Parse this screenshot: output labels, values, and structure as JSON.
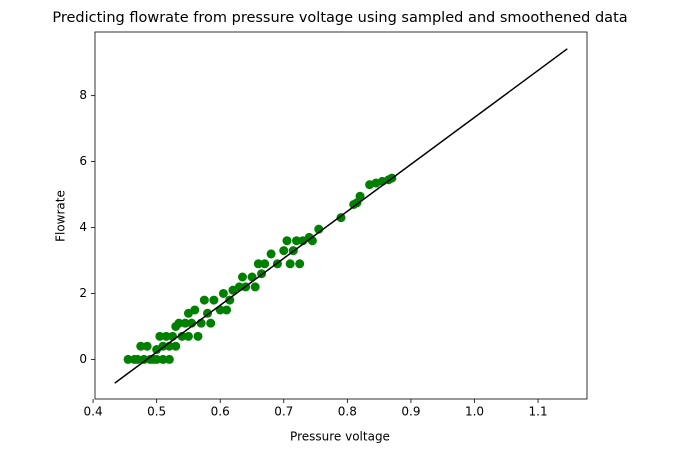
{
  "chart_data": {
    "type": "scatter",
    "title": "Predicting flowrate from pressure voltage using sampled and smoothened data",
    "x_label": "Pressure voltage",
    "y_label": "Flowrate",
    "xlim": [
      0.403,
      1.177
    ],
    "ylim": [
      -1.2,
      9.93
    ],
    "xticks": [
      0.4,
      0.5,
      0.6,
      0.7,
      0.8,
      0.9,
      {
        "value": 1,
        "label": "1.0"
      },
      1.1
    ],
    "yticks": [
      0,
      2,
      4,
      6,
      8
    ],
    "points": {
      "color": "#008000",
      "x": [
        0.455,
        0.465,
        0.47,
        0.475,
        0.48,
        0.485,
        0.49,
        0.495,
        0.5,
        0.5,
        0.505,
        0.51,
        0.51,
        0.515,
        0.52,
        0.52,
        0.525,
        0.53,
        0.53,
        0.535,
        0.54,
        0.545,
        0.55,
        0.55,
        0.555,
        0.56,
        0.565,
        0.57,
        0.575,
        0.58,
        0.585,
        0.59,
        0.6,
        0.605,
        0.61,
        0.615,
        0.62,
        0.63,
        0.635,
        0.64,
        0.65,
        0.655,
        0.66,
        0.665,
        0.67,
        0.68,
        0.69,
        0.7,
        0.705,
        0.71,
        0.715,
        0.72,
        0.725,
        0.73,
        0.74,
        0.745,
        0.755,
        0.79,
        0.81,
        0.815,
        0.82,
        0.835,
        0.845,
        0.855,
        0.865,
        0.87
      ],
      "values": [
        0,
        0,
        0,
        0.4,
        0,
        0.4,
        0,
        0,
        0.3,
        0,
        0.7,
        0,
        0.4,
        0.7,
        0,
        0.4,
        0.7,
        1.0,
        0.4,
        1.1,
        0.7,
        1.1,
        0.7,
        1.4,
        1.1,
        1.5,
        0.7,
        1.1,
        1.8,
        1.4,
        1.1,
        1.8,
        1.5,
        2.0,
        1.5,
        1.8,
        2.1,
        2.2,
        2.5,
        2.2,
        2.5,
        2.2,
        2.9,
        2.6,
        2.9,
        3.2,
        2.9,
        3.3,
        3.6,
        2.9,
        3.3,
        3.6,
        2.9,
        3.6,
        3.7,
        3.6,
        3.95,
        4.3,
        4.7,
        4.75,
        4.95,
        5.3,
        5.35,
        5.4,
        5.45,
        5.5
      ]
    },
    "line": {
      "color": "#000000",
      "x": [
        0.434,
        1.146
      ],
      "values": [
        -0.72,
        9.42
      ]
    }
  }
}
